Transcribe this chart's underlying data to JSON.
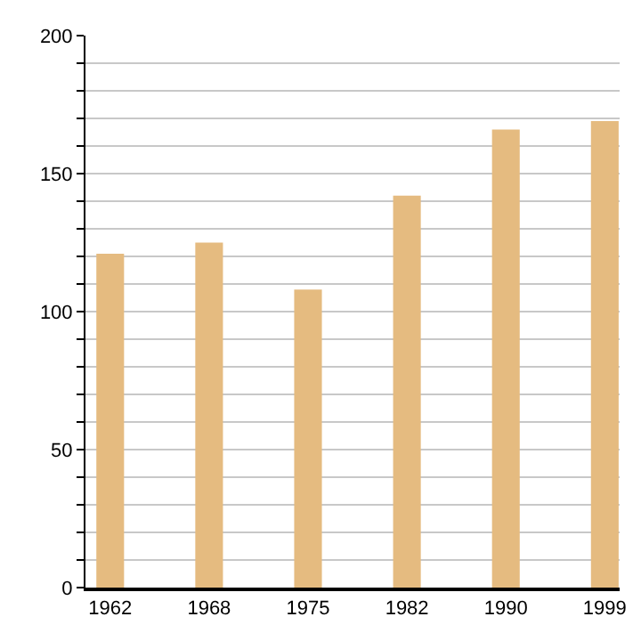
{
  "chart_data": {
    "type": "bar",
    "categories": [
      "1962",
      "1968",
      "1975",
      "1982",
      "1990",
      "1999"
    ],
    "values": [
      121,
      125,
      108,
      142,
      166,
      169
    ],
    "color": "#e5bb80",
    "ylim": [
      0,
      200
    ],
    "yticks": [
      0,
      {
        "value": 10,
        "label": null
      },
      {
        "value": 20,
        "label": null
      },
      {
        "value": 30,
        "label": null
      },
      {
        "value": 40,
        "label": null
      },
      50,
      {
        "value": 60,
        "label": null
      },
      {
        "value": 70,
        "label": null
      },
      {
        "value": 80,
        "label": null
      },
      {
        "value": 90,
        "label": null
      },
      100,
      {
        "value": 110,
        "label": null
      },
      {
        "value": 120,
        "label": null
      },
      {
        "value": 130,
        "label": null
      },
      {
        "value": 140,
        "label": null
      },
      150,
      {
        "value": 160,
        "label": null
      },
      {
        "value": 170,
        "label": null
      },
      {
        "value": 180,
        "label": null
      },
      {
        "value": 190,
        "label": null
      },
      200
    ],
    "grid": "y"
  }
}
